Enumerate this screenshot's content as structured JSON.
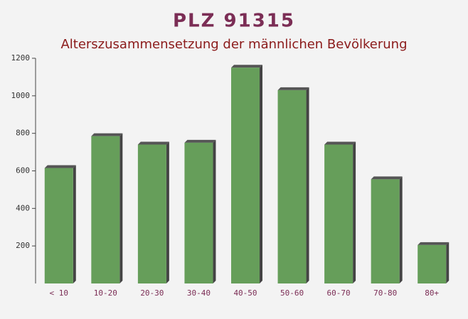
{
  "chart_data": {
    "type": "bar",
    "title": "PLZ 91315",
    "subtitle": "Alterszusammensetzung der männlichen Bevölkerung",
    "categories": [
      "< 10",
      "10-20",
      "20-30",
      "30-40",
      "40-50",
      "50-60",
      "60-70",
      "70-80",
      "80+"
    ],
    "values": [
      615,
      785,
      740,
      750,
      1150,
      1030,
      740,
      555,
      205
    ],
    "color": "#669e5a",
    "ylim": [
      0,
      1200
    ],
    "yticks": [
      200,
      400,
      600,
      800,
      1000,
      1200
    ],
    "grid": false
  }
}
